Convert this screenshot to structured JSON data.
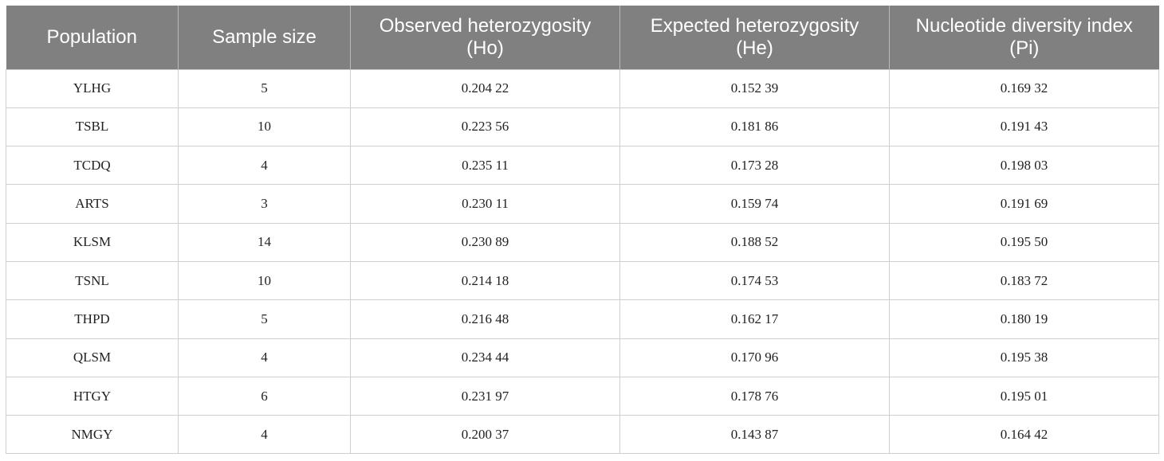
{
  "table": {
    "headers": [
      {
        "lines": [
          "Population"
        ]
      },
      {
        "lines": [
          "Sample size"
        ]
      },
      {
        "lines": [
          "Observed heterozygosity",
          "(Ho)"
        ]
      },
      {
        "lines": [
          "Expected heterozygosity",
          "(He)"
        ]
      },
      {
        "lines": [
          "Nucleotide diversity index",
          "(Pi)"
        ]
      }
    ],
    "rows": [
      [
        "YLHG",
        "5",
        "0.204 22",
        "0.152 39",
        "0.169 32"
      ],
      [
        "TSBL",
        "10",
        "0.223 56",
        "0.181 86",
        "0.191 43"
      ],
      [
        "TCDQ",
        "4",
        "0.235 11",
        "0.173 28",
        "0.198 03"
      ],
      [
        "ARTS",
        "3",
        "0.230 11",
        "0.159 74",
        "0.191 69"
      ],
      [
        "KLSM",
        "14",
        "0.230 89",
        "0.188 52",
        "0.195 50"
      ],
      [
        "TSNL",
        "10",
        "0.214 18",
        "0.174 53",
        "0.183 72"
      ],
      [
        "THPD",
        "5",
        "0.216 48",
        "0.162 17",
        "0.180 19"
      ],
      [
        "QLSM",
        "4",
        "0.234 44",
        "0.170 96",
        "0.195 38"
      ],
      [
        "HTGY",
        "6",
        "0.231 97",
        "0.178 76",
        "0.195 01"
      ],
      [
        "NMGY",
        "4",
        "0.200 37",
        "0.143 87",
        "0.164 42"
      ]
    ]
  }
}
